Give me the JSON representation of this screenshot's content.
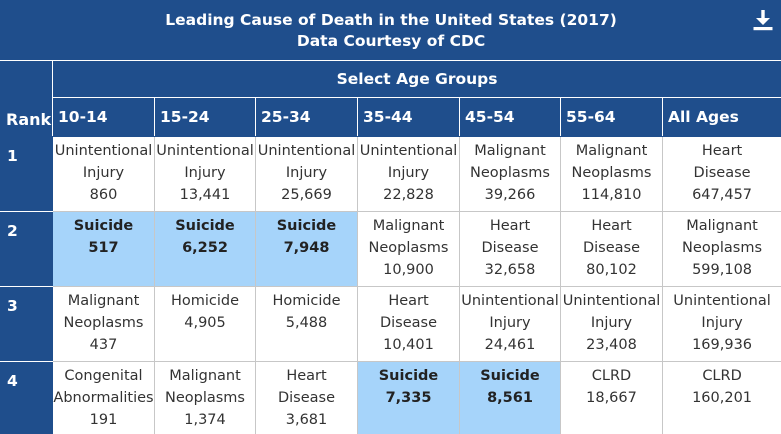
{
  "title": {
    "line1": "Leading Cause of Death in the United States (2017)",
    "line2": "Data Courtesy of CDC",
    "download_icon": "download-icon"
  },
  "rank_header": "Rank",
  "age_group_title": "Select Age Groups",
  "columns": [
    "10-14",
    "15-24",
    "25-34",
    "35-44",
    "45-54",
    "55-64",
    "All Ages"
  ],
  "rows": [
    {
      "rank": "1",
      "cells": [
        {
          "cause": [
            "Unintentional",
            "Injury"
          ],
          "count": "860"
        },
        {
          "cause": [
            "Unintentional",
            "Injury"
          ],
          "count": "13,441"
        },
        {
          "cause": [
            "Unintentional",
            "Injury"
          ],
          "count": "25,669"
        },
        {
          "cause": [
            "Unintentional",
            "Injury"
          ],
          "count": "22,828"
        },
        {
          "cause": [
            "Malignant",
            "Neoplasms"
          ],
          "count": "39,266"
        },
        {
          "cause": [
            "Malignant",
            "Neoplasms"
          ],
          "count": "114,810"
        },
        {
          "cause": [
            "Heart",
            "Disease"
          ],
          "count": "647,457"
        }
      ]
    },
    {
      "rank": "2",
      "cells": [
        {
          "cause": [
            "Suicide"
          ],
          "count": "517",
          "highlight": true
        },
        {
          "cause": [
            "Suicide"
          ],
          "count": "6,252",
          "highlight": true
        },
        {
          "cause": [
            "Suicide"
          ],
          "count": "7,948",
          "highlight": true
        },
        {
          "cause": [
            "Malignant",
            "Neoplasms"
          ],
          "count": "10,900"
        },
        {
          "cause": [
            "Heart",
            "Disease"
          ],
          "count": "32,658"
        },
        {
          "cause": [
            "Heart",
            "Disease"
          ],
          "count": "80,102"
        },
        {
          "cause": [
            "Malignant",
            "Neoplasms"
          ],
          "count": "599,108"
        }
      ]
    },
    {
      "rank": "3",
      "cells": [
        {
          "cause": [
            "Malignant",
            "Neoplasms"
          ],
          "count": "437"
        },
        {
          "cause": [
            "Homicide"
          ],
          "count": "4,905"
        },
        {
          "cause": [
            "Homicide"
          ],
          "count": "5,488"
        },
        {
          "cause": [
            "Heart",
            "Disease"
          ],
          "count": "10,401"
        },
        {
          "cause": [
            "Unintentional",
            "Injury"
          ],
          "count": "24,461"
        },
        {
          "cause": [
            "Unintentional",
            "Injury"
          ],
          "count": "23,408"
        },
        {
          "cause": [
            "Unintentional",
            "Injury"
          ],
          "count": "169,936"
        }
      ]
    },
    {
      "rank": "4",
      "cells": [
        {
          "cause": [
            "Congenital",
            "Abnormalities"
          ],
          "count": "191"
        },
        {
          "cause": [
            "Malignant",
            "Neoplasms"
          ],
          "count": "1,374"
        },
        {
          "cause": [
            "Heart",
            "Disease"
          ],
          "count": "3,681"
        },
        {
          "cause": [
            "Suicide"
          ],
          "count": "7,335",
          "highlight": true
        },
        {
          "cause": [
            "Suicide"
          ],
          "count": "8,561",
          "highlight": true
        },
        {
          "cause": [
            "CLRD"
          ],
          "count": "18,667"
        },
        {
          "cause": [
            "CLRD"
          ],
          "count": "160,201"
        }
      ]
    }
  ]
}
